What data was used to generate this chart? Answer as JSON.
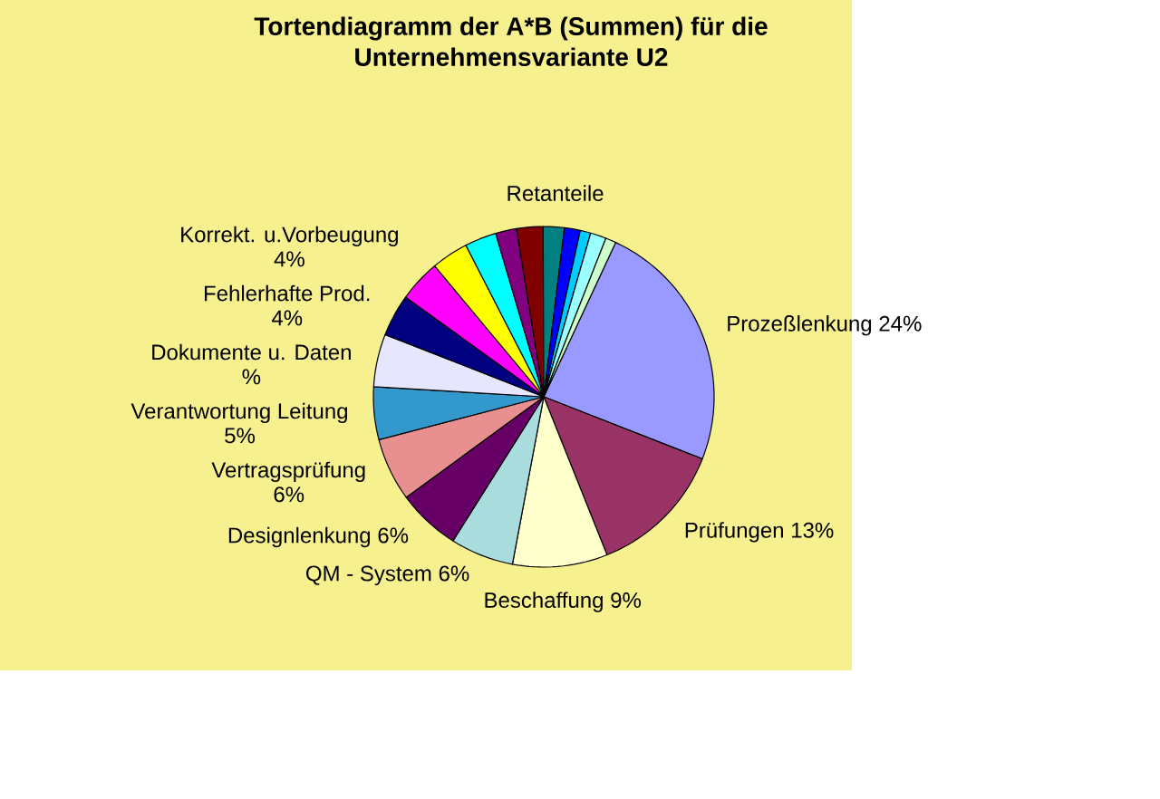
{
  "chart_data": {
    "type": "pie",
    "title": "Tortendiagramm der A*B (Summen) für die Unternehmensvariante U2",
    "categories": [
      "Prozeßlenkung",
      "Prüfungen",
      "Beschaffung",
      "QM - System",
      "Designlenkung",
      "Vertragsprüfung",
      "Verantwortung Leitung",
      "Dokumente u. Daten",
      "Fehlerhafte Prod.",
      "Korrekt. u.Vorbeugung",
      null,
      null,
      null,
      null,
      "Retanteile",
      null,
      null,
      null,
      null
    ],
    "values": [
      24,
      13,
      9,
      6,
      6,
      6,
      5,
      5,
      4,
      4,
      3.5,
      3,
      2,
      2.5,
      2,
      1.5,
      1,
      1.5,
      1
    ],
    "value_labels": [
      "24%",
      "13%",
      "9%",
      "6%",
      "6%",
      "6%",
      "5%",
      "%",
      "4%",
      "4%",
      null,
      null,
      null,
      null,
      null,
      null,
      null,
      null,
      null
    ],
    "colors": [
      "#9999ff",
      "#993366",
      "#ffffcc",
      "#a9dcdc",
      "#660066",
      "#e89090",
      "#3399cc",
      "#e6e6ff",
      "#000080",
      "#ff00ff",
      "#ffff00",
      "#00ffff",
      "#800080",
      "#800000",
      "#008080",
      "#0000ff",
      "#00ccff",
      "#99ffff",
      "#ccffcc"
    ]
  }
}
